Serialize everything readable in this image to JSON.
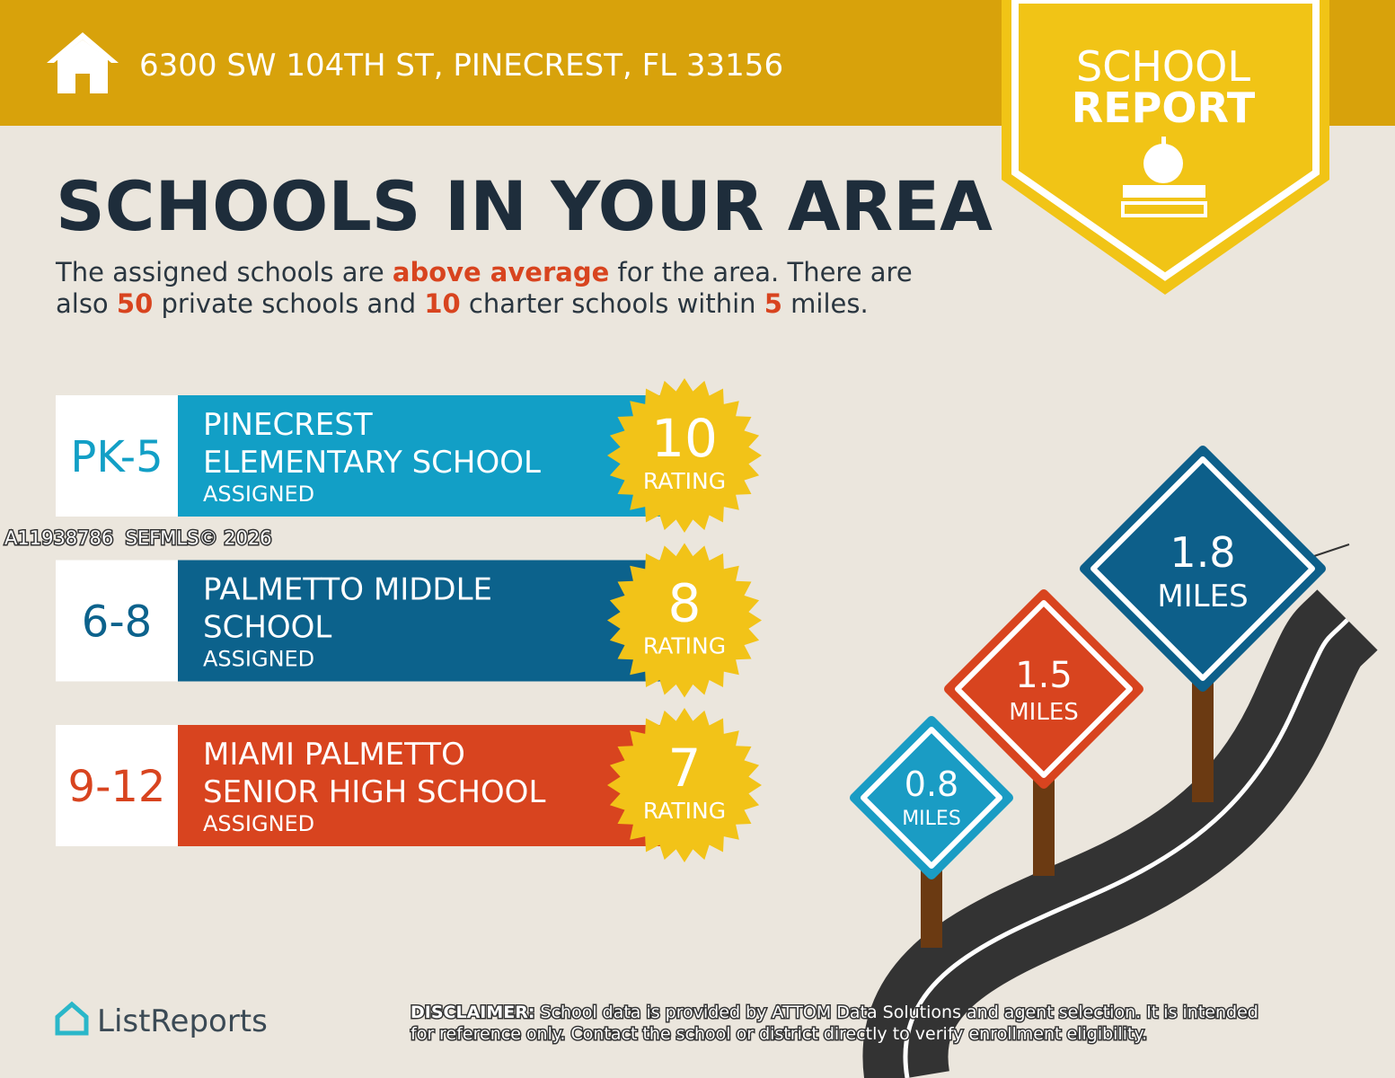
{
  "header": {
    "address": "6300 SW 104TH ST, PINECREST, FL 33156",
    "badge": [
      "SCHOOL",
      "REPORT"
    ]
  },
  "title": "SCHOOLS IN YOUR AREA",
  "intro": [
    [
      {
        "text": "The assigned schools are ",
        "highlight": false
      },
      {
        "text": "above average",
        "highlight": true
      },
      {
        "text": " for the area. There are",
        "highlight": false
      }
    ],
    [
      {
        "text": "also ",
        "highlight": false
      },
      {
        "text": "50",
        "highlight": true
      },
      {
        "text": " private schools and ",
        "highlight": false
      },
      {
        "text": "10",
        "highlight": true
      },
      {
        "text": " charter schools within ",
        "highlight": false
      },
      {
        "text": "5",
        "highlight": true
      },
      {
        "text": " miles.",
        "highlight": false
      }
    ]
  ],
  "schools": [
    {
      "grade": "PK-5",
      "name": [
        "PINECREST",
        "ELEMENTARY SCHOOL"
      ],
      "status": "ASSIGNED",
      "rating": 10,
      "rating_label": "RATING",
      "color": "#129fc6"
    },
    {
      "grade": "6-8",
      "name": [
        "PALMETTO MIDDLE",
        "SCHOOL"
      ],
      "status": "ASSIGNED",
      "rating": 8,
      "rating_label": "RATING",
      "color": "#0c628c"
    },
    {
      "grade": "9-12",
      "name": [
        "MIAMI PALMETTO",
        "SENIOR HIGH SCHOOL"
      ],
      "status": "ASSIGNED",
      "rating": 7,
      "rating_label": "RATING",
      "color": "#d8441f"
    }
  ],
  "signs": [
    {
      "distance": "0.8",
      "unit": "MILES",
      "color": "#1a9cc4"
    },
    {
      "distance": "1.5",
      "unit": "MILES",
      "color": "#d8441f"
    },
    {
      "distance": "1.8",
      "unit": "MILES",
      "color": "#0d5f8a"
    }
  ],
  "watermark": "A11938786  SEFMLS© 2026",
  "logo": "ListReports",
  "disclaimer": {
    "label": "DISCLAIMER:",
    "text": [
      "School data is provided by ATTOM Data Solutions and agent selection. It is intended",
      "for reference only. Contact the school or district directly to verify enrollment eligibility."
    ]
  }
}
